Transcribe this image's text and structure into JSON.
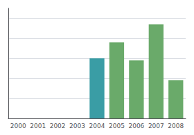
{
  "chart_data": {
    "type": "bar",
    "categories": [
      "2000",
      "2001",
      "2002",
      "2003",
      "2004",
      "2005",
      "2006",
      "2007",
      "2008"
    ],
    "values": [
      0,
      0,
      0,
      0,
      3.0,
      3.8,
      2.9,
      4.7,
      1.9
    ],
    "colors": [
      "#ffffff",
      "#ffffff",
      "#ffffff",
      "#ffffff",
      "#3a9da5",
      "#6aaa6a",
      "#6aaa6a",
      "#6aaa6a",
      "#6aaa6a"
    ],
    "ylim": [
      0,
      5.5
    ],
    "yticks": [
      1,
      2,
      3,
      4,
      5
    ],
    "grid": true,
    "tick_labels": "x"
  }
}
